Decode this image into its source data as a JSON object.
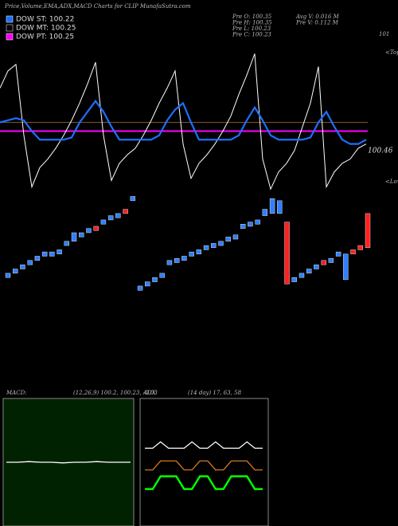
{
  "chart_data": [
    {
      "type": "candlestick",
      "title": "Price,Volume,EMA,ADX,MACD Charts for CLIP MunafaSutra.com",
      "legend": [
        {
          "name": "DOW ST: 100.22",
          "color": "#1e6fff"
        },
        {
          "name": "DOW MT: 100.25",
          "color": "#000000"
        },
        {
          "name": "DOW PT: 100.25",
          "color": "#ff00ff"
        }
      ],
      "info": [
        "Pre  O: 100.35",
        "Pre  H: 100.35",
        "Pre  L: 100.23",
        "Pre  C: 100.23",
        "Avg V: 0.016  M",
        "Pre  V: 0.112  M"
      ],
      "annotations": [
        "<Tops",
        "<Lows"
      ],
      "up_color": "#ff2020",
      "down_color": "#2f7fff",
      "ylim": [
        99.76,
        101.03
      ],
      "candles": [
        {
          "open": 99.88,
          "close": 99.86
        },
        {
          "open": 99.9,
          "close": 99.88
        },
        {
          "open": 99.92,
          "close": 99.9
        },
        {
          "open": 99.94,
          "close": 99.92
        },
        {
          "open": 99.96,
          "close": 99.94
        },
        {
          "open": 99.98,
          "close": 99.96
        },
        {
          "open": 99.98,
          "close": 99.96
        },
        {
          "open": 99.99,
          "close": 99.97
        },
        {
          "open": 100.03,
          "close": 100.01
        },
        {
          "open": 100.07,
          "close": 100.03
        },
        {
          "open": 100.07,
          "close": 100.05
        },
        {
          "open": 100.09,
          "close": 100.07
        },
        {
          "open": 100.08,
          "close": 100.1
        },
        {
          "open": 100.13,
          "close": 100.11
        },
        {
          "open": 100.15,
          "close": 100.13
        },
        {
          "open": 100.16,
          "close": 100.14
        },
        {
          "open": 100.16,
          "close": 100.18
        },
        {
          "open": 100.24,
          "close": 100.22
        },
        {
          "open": 99.82,
          "close": 99.8
        },
        {
          "open": 99.84,
          "close": 99.82
        },
        {
          "open": 99.86,
          "close": 99.84
        },
        {
          "open": 99.88,
          "close": 99.86
        },
        {
          "open": 99.94,
          "close": 99.92
        },
        {
          "open": 99.95,
          "close": 99.93
        },
        {
          "open": 99.96,
          "close": 99.94
        },
        {
          "open": 99.98,
          "close": 99.96
        },
        {
          "open": 99.99,
          "close": 99.97
        },
        {
          "open": 100.01,
          "close": 99.99
        },
        {
          "open": 100.02,
          "close": 100.0
        },
        {
          "open": 100.03,
          "close": 100.01
        },
        {
          "open": 100.05,
          "close": 100.03
        },
        {
          "open": 100.06,
          "close": 100.04
        },
        {
          "open": 100.11,
          "close": 100.09
        },
        {
          "open": 100.12,
          "close": 100.1
        },
        {
          "open": 100.13,
          "close": 100.11
        },
        {
          "open": 100.18,
          "close": 100.15
        },
        {
          "open": 100.23,
          "close": 100.16
        },
        {
          "open": 100.22,
          "close": 100.16
        },
        {
          "open": 99.83,
          "close": 100.12
        },
        {
          "open": 99.86,
          "close": 99.84
        },
        {
          "open": 99.88,
          "close": 99.86
        },
        {
          "open": 99.9,
          "close": 99.88
        },
        {
          "open": 99.92,
          "close": 99.9
        },
        {
          "open": 99.92,
          "close": 99.94
        },
        {
          "open": 99.95,
          "close": 99.93
        },
        {
          "open": 99.98,
          "close": 99.96
        },
        {
          "open": 99.97,
          "close": 99.85
        },
        {
          "open": 99.97,
          "close": 99.99
        },
        {
          "open": 99.99,
          "close": 100.01
        },
        {
          "open": 100.0,
          "close": 100.16
        }
      ],
      "y2lim": [
        100.27,
        101.03
      ],
      "y2ticks": [
        101,
        100.46
      ],
      "levels": [
        {
          "value": 100.59,
          "color": "#8b5a2b"
        },
        {
          "value": 100.55,
          "color": "#ff00ff"
        }
      ],
      "series": [
        {
          "color": "#ffffff",
          "axis": "y2",
          "values": [
            100.75,
            100.83,
            100.86,
            100.53,
            100.29,
            100.38,
            100.42,
            100.47,
            100.53,
            100.6,
            100.68,
            100.77,
            100.87,
            100.53,
            100.32,
            100.4,
            100.44,
            100.47,
            100.53,
            100.6,
            100.68,
            100.75,
            100.83,
            100.49,
            100.33,
            100.4,
            100.44,
            100.49,
            100.55,
            100.62,
            100.72,
            100.81,
            100.91,
            100.42,
            100.28,
            100.36,
            100.4,
            100.46,
            100.57,
            100.68,
            100.85,
            100.29,
            100.36,
            100.4,
            100.42,
            100.47,
            100.49
          ]
        },
        {
          "color": "#1e6fff",
          "axis": "y2",
          "values": [
            100.59,
            100.6,
            100.61,
            100.6,
            100.55,
            100.51,
            100.51,
            100.51,
            100.51,
            100.52,
            100.59,
            100.64,
            100.69,
            100.64,
            100.57,
            100.51,
            100.51,
            100.51,
            100.51,
            100.51,
            100.53,
            100.6,
            100.65,
            100.68,
            100.59,
            100.51,
            100.51,
            100.51,
            100.51,
            100.51,
            100.53,
            100.6,
            100.66,
            100.6,
            100.53,
            100.51,
            100.51,
            100.51,
            100.51,
            100.52,
            100.59,
            100.64,
            100.57,
            100.51,
            100.49,
            100.49,
            100.51
          ]
        }
      ]
    },
    {
      "type": "line",
      "title": "MACD:",
      "subtitle": "(12,26,9) 100.2, 100.23, -0.03",
      "background": "#002200",
      "ylim": [
        -1,
        1
      ],
      "series": [
        {
          "color": "#ffffff",
          "values": [
            0,
            0,
            0.01,
            0,
            0,
            -0.01,
            0,
            0,
            0.01,
            0,
            0,
            0
          ]
        }
      ]
    },
    {
      "type": "line",
      "title": "ADX",
      "subtitle": "(14 day) 17, 63, 58",
      "background": "#000000",
      "ylim": [
        0,
        100
      ],
      "series": [
        {
          "color": "#ffffff",
          "values": [
            61,
            61,
            66,
            61,
            61,
            61,
            66,
            61,
            61,
            66,
            61,
            61,
            61,
            66,
            61,
            61
          ]
        },
        {
          "color": "#d2781e",
          "values": [
            44,
            44,
            51,
            51,
            51,
            44,
            44,
            51,
            51,
            44,
            44,
            51,
            51,
            51,
            44,
            44
          ]
        },
        {
          "color": "#00ff00",
          "values": [
            29,
            29,
            39,
            39,
            39,
            29,
            29,
            39,
            39,
            29,
            29,
            39,
            39,
            39,
            29,
            29
          ]
        }
      ]
    }
  ]
}
